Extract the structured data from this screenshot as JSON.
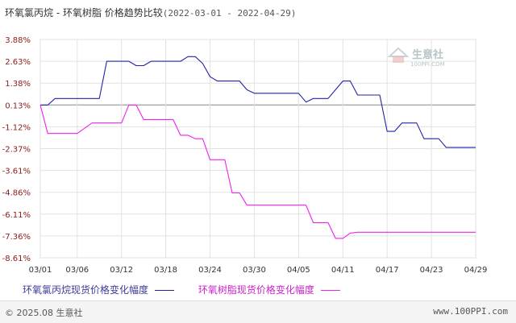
{
  "header": {
    "title": "环氧氯丙烷 - 环氧树脂 价格趋势比较",
    "date_range": "(2022-03-01 - 2022-04-29)"
  },
  "watermark": {
    "brand": "生意社",
    "url": "100PPI.COM"
  },
  "footer": {
    "copyright": "© 2025.08 生意社",
    "site": "www.100PPI.com"
  },
  "chart_data": {
    "type": "line",
    "title": "环氧氯丙烷 - 环氧树脂 价格趋势比较",
    "date_range": "(2022-03-01 - 2022-04-29)",
    "x": [
      "03/01",
      "03/02",
      "03/03",
      "03/04",
      "03/05",
      "03/06",
      "03/07",
      "03/08",
      "03/09",
      "03/10",
      "03/11",
      "03/12",
      "03/13",
      "03/14",
      "03/15",
      "03/16",
      "03/17",
      "03/18",
      "03/19",
      "03/20",
      "03/21",
      "03/22",
      "03/23",
      "03/24",
      "03/25",
      "03/26",
      "03/27",
      "03/28",
      "03/29",
      "03/30",
      "03/31",
      "04/01",
      "04/02",
      "04/03",
      "04/04",
      "04/05",
      "04/06",
      "04/07",
      "04/08",
      "04/09",
      "04/10",
      "04/11",
      "04/12",
      "04/13",
      "04/14",
      "04/15",
      "04/16",
      "04/17",
      "04/18",
      "04/19",
      "04/20",
      "04/21",
      "04/22",
      "04/23",
      "04/24",
      "04/25",
      "04/26",
      "04/27",
      "04/28",
      "04/29"
    ],
    "xticks": [
      "03/01",
      "03/06",
      "03/12",
      "03/18",
      "03/24",
      "03/30",
      "04/05",
      "04/11",
      "04/17",
      "04/23",
      "04/29"
    ],
    "yticks": [
      "3.88%",
      "2.63%",
      "1.38%",
      "0.13%",
      "-1.12%",
      "-2.37%",
      "-3.61%",
      "-4.86%",
      "-6.11%",
      "-7.36%",
      "-8.61%"
    ],
    "ylim": [
      -8.61,
      3.88
    ],
    "ylabel": "",
    "xlabel": "",
    "grid": true,
    "legend_position": "bottom",
    "series": [
      {
        "name": "环氧氯丙烷现货价格变化幅度",
        "color": "#2222aa",
        "values": [
          0.13,
          0.13,
          0.5,
          0.5,
          0.5,
          0.5,
          0.5,
          0.5,
          0.5,
          2.63,
          2.63,
          2.63,
          2.63,
          2.38,
          2.38,
          2.63,
          2.63,
          2.63,
          2.63,
          2.63,
          2.9,
          2.9,
          2.5,
          1.75,
          1.5,
          1.5,
          1.5,
          1.5,
          1.0,
          0.8,
          0.8,
          0.8,
          0.8,
          0.8,
          0.8,
          0.8,
          0.3,
          0.5,
          0.5,
          0.5,
          1.0,
          1.5,
          1.5,
          0.7,
          0.7,
          0.7,
          0.7,
          -1.38,
          -1.38,
          -0.9,
          -0.9,
          -0.9,
          -1.8,
          -1.8,
          -1.8,
          -2.3,
          -2.3,
          -2.3,
          -2.3,
          -2.3
        ]
      },
      {
        "name": "环氧树脂现货价格变化幅度",
        "color": "#ee22ee",
        "values": [
          0.13,
          -1.5,
          -1.5,
          -1.5,
          -1.5,
          -1.5,
          -1.2,
          -0.9,
          -0.9,
          -0.9,
          -0.9,
          -0.9,
          0.13,
          0.13,
          -0.7,
          -0.7,
          -0.7,
          -0.7,
          -0.7,
          -1.6,
          -1.6,
          -1.8,
          -1.8,
          -3.0,
          -3.0,
          -3.0,
          -4.9,
          -4.9,
          -5.6,
          -5.6,
          -5.6,
          -5.6,
          -5.6,
          -5.6,
          -5.6,
          -5.6,
          -5.6,
          -6.6,
          -6.6,
          -6.6,
          -7.5,
          -7.5,
          -7.2,
          -7.15,
          -7.15,
          -7.15,
          -7.15,
          -7.15,
          -7.15,
          -7.15,
          -7.15,
          -7.15,
          -7.15,
          -7.15,
          -7.15,
          -7.15,
          -7.15,
          -7.15,
          -7.15,
          -7.15
        ]
      }
    ]
  }
}
